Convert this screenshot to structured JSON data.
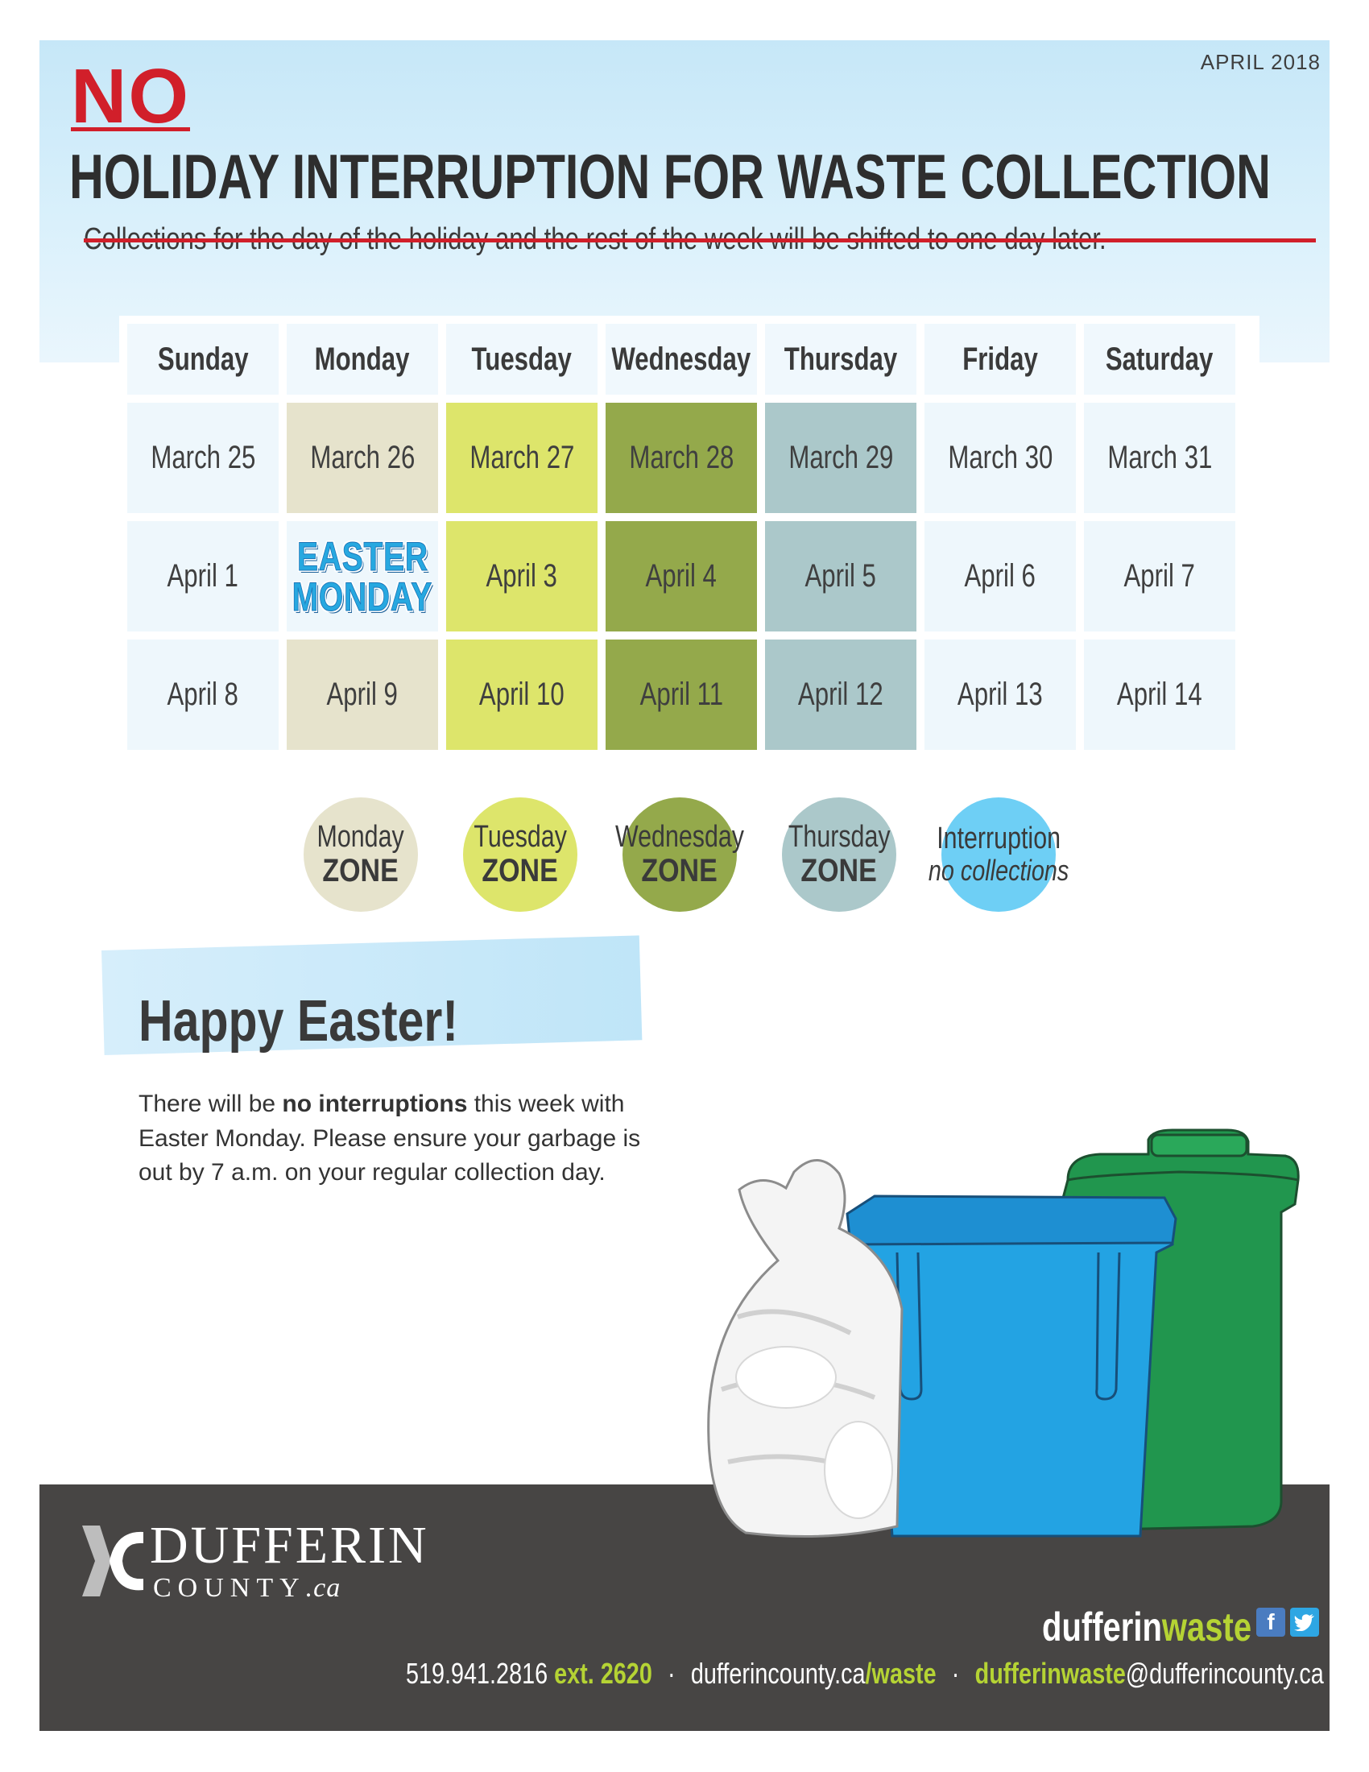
{
  "header": {
    "date": "APRIL 2018",
    "no_word": "NO",
    "title": "HOLIDAY INTERRUPTION FOR WASTE COLLECTION",
    "subtitle": "Collections for the day of the holiday and the rest of the week will be shifted to one day later."
  },
  "calendar": {
    "days": [
      "Sunday",
      "Monday",
      "Tuesday",
      "Wednesday",
      "Thursday",
      "Friday",
      "Saturday"
    ],
    "weeks": [
      [
        "March 25",
        "March 26",
        "March 27",
        "March 28",
        "March 29",
        "March 30",
        "March 31"
      ],
      [
        "April 1",
        "EASTER MONDAY",
        "April 3",
        "April 4",
        "April 5",
        "April 6",
        "April 7"
      ],
      [
        "April 8",
        "April 9",
        "April 10",
        "April 11",
        "April 12",
        "April 13",
        "April 14"
      ]
    ],
    "holiday_line1": "EASTER",
    "holiday_line2": "MONDAY",
    "zone_colors": {
      "plain": "#eef7fc",
      "monday": "#e6e3cc",
      "tuesday": "#dde56b",
      "wednesday": "#94a94b",
      "thursday": "#abc8ca",
      "interruption": "#6ecff5"
    }
  },
  "legend": [
    {
      "line1": "Monday",
      "line2": "ZONE"
    },
    {
      "line1": "Tuesday",
      "line2": "ZONE"
    },
    {
      "line1": "Wednesday",
      "line2": "ZONE"
    },
    {
      "line1": "Thursday",
      "line2": "ZONE"
    },
    {
      "line1": "Interruption",
      "line2": "no collections"
    }
  ],
  "notice": {
    "heading": "Happy Easter!",
    "body_part1": "There will be ",
    "body_bold": "no interruptions",
    "body_part2": " this week with Easter Monday. Please ensure your garbage is out by 7 a.m. on your regular collection day."
  },
  "footer": {
    "logo_name": "DUFFERIN",
    "logo_sub": "COUNTY",
    "logo_sub_tld": ".ca",
    "brand_part1": "dufferin",
    "brand_part2": "waste",
    "phone": "519.941.2816",
    "ext": "ext. 2620",
    "separator": "·",
    "web_part1": "dufferincounty.ca",
    "web_part2": "/waste",
    "email_part1": "dufferinwaste",
    "email_part2": "@dufferincounty.ca"
  },
  "icons": [
    "facebook-icon",
    "twitter-icon",
    "dufferin-logo-icon",
    "garbage-bag-icon",
    "blue-box-icon",
    "green-bin-icon"
  ]
}
